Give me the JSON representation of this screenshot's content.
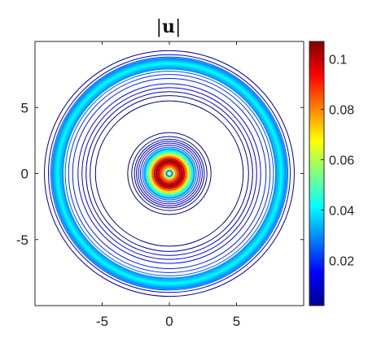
{
  "chart_data": {
    "type": "heatmap",
    "title_bars": "|",
    "title_var": "u",
    "xlim": [
      -10,
      10
    ],
    "ylim": [
      -10,
      10
    ],
    "xticks": [
      -5,
      0,
      5
    ],
    "yticks": [
      -5,
      0,
      5
    ],
    "grid": false,
    "colorbar": {
      "colormap": "jet",
      "range": [
        0.002,
        0.107
      ],
      "ticks": [
        0.02,
        0.04,
        0.06,
        0.08,
        0.1
      ],
      "tick_labels": [
        "0.02",
        "0.04",
        "0.06",
        "0.08",
        "0.1"
      ]
    },
    "contour_rings": [
      {
        "r": 0.22,
        "value": 0.03
      },
      {
        "r": 0.35,
        "value": 0.06
      },
      {
        "r": 0.5,
        "value": 0.08
      },
      {
        "r": 0.65,
        "value": 0.09
      },
      {
        "r": 0.8,
        "value": 0.1
      },
      {
        "r": 0.95,
        "value": 0.105
      },
      {
        "r": 1.1,
        "value": 0.098
      },
      {
        "r": 1.25,
        "value": 0.085
      },
      {
        "r": 1.4,
        "value": 0.07
      },
      {
        "r": 1.55,
        "value": 0.055
      },
      {
        "r": 1.7,
        "value": 0.042
      },
      {
        "r": 1.85,
        "value": 0.032
      },
      {
        "r": 2.0,
        "value": 0.022
      },
      {
        "r": 2.15,
        "value": 0.015
      },
      {
        "r": 2.3,
        "value": 0.01
      },
      {
        "r": 2.45,
        "value": 0.006
      },
      {
        "r": 2.6,
        "value": 0.004
      },
      {
        "r": 2.8,
        "value": 0.003
      },
      {
        "r": 3.1,
        "value": 0.002
      },
      {
        "r": 5.5,
        "value": 0.002
      },
      {
        "r": 5.9,
        "value": 0.004
      },
      {
        "r": 6.2,
        "value": 0.008
      },
      {
        "r": 6.5,
        "value": 0.012
      },
      {
        "r": 6.8,
        "value": 0.016
      },
      {
        "r": 7.2,
        "value": 0.018
      },
      {
        "r": 7.5,
        "value": 0.02
      },
      {
        "r": 7.75,
        "value": 0.024
      },
      {
        "r": 7.95,
        "value": 0.03
      },
      {
        "r": 8.1,
        "value": 0.034
      },
      {
        "r": 8.22,
        "value": 0.038
      },
      {
        "r": 8.34,
        "value": 0.041
      },
      {
        "r": 8.46,
        "value": 0.038
      },
      {
        "r": 8.58,
        "value": 0.034
      },
      {
        "r": 8.7,
        "value": 0.03
      },
      {
        "r": 8.82,
        "value": 0.022
      },
      {
        "r": 9.0,
        "value": 0.012
      },
      {
        "r": 9.3,
        "value": 0.004
      }
    ]
  }
}
